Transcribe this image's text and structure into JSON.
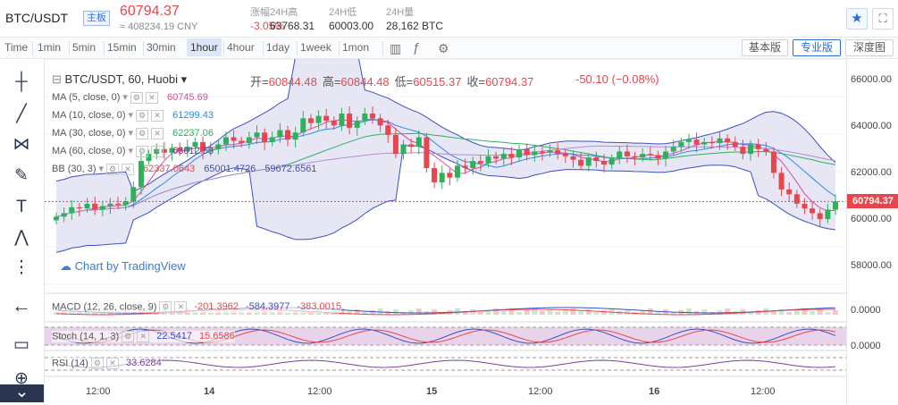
{
  "header": {
    "pair": "BTC/USDT",
    "board": "主板",
    "price": "60794.37",
    "cny": "≈ 408234.19 CNY",
    "stats": [
      {
        "label": "涨幅",
        "value": "-3.05%",
        "color": "#e8464d"
      },
      {
        "label": "24H高",
        "value": "63768.31",
        "color": "#333333"
      },
      {
        "label": "24H低",
        "value": "60003.00",
        "color": "#333333"
      },
      {
        "label": "24H量",
        "value": "28,162 BTC",
        "color": "#333333"
      }
    ],
    "star_icon": "★",
    "fullscreen_icon": "⛶"
  },
  "toolbar": {
    "time_label": "Time",
    "intervals": [
      "1min",
      "5min",
      "15min",
      "30min",
      "1hour",
      "4hour",
      "1day",
      "1week",
      "1mon"
    ],
    "active_interval": "1hour",
    "views": [
      "基本版",
      "专业版",
      "深度图"
    ],
    "active_view": "专业版"
  },
  "legend": {
    "title": "BTC/USDT, 60, Huobi",
    "ohlc": [
      {
        "k": "开=",
        "v": "60844.48"
      },
      {
        "k": "高=",
        "v": "60844.48"
      },
      {
        "k": "低=",
        "v": "60515.37"
      },
      {
        "k": "收=",
        "v": "60794.37"
      }
    ],
    "change": "-50.10 (−0.08%)",
    "indicators": [
      {
        "name": "MA (5, close, 0)",
        "values": [
          "60745.69"
        ],
        "colors": [
          "#e0489f"
        ]
      },
      {
        "name": "MA (10, close, 0)",
        "values": [
          "61299.43"
        ],
        "colors": [
          "#2f88e8"
        ]
      },
      {
        "name": "MA (30, close, 0)",
        "values": [
          "62237.06"
        ],
        "colors": [
          "#2fb05a"
        ]
      },
      {
        "name": "MA (60, close, 0)",
        "values": [
          "63012.53"
        ],
        "colors": [
          "#7a3f9d"
        ]
      },
      {
        "name": "BB (30, 3)",
        "values": [
          "62337.0643",
          "65001.4726",
          "59672.6561"
        ],
        "colors": [
          "#e8464d",
          "#3c4fc4",
          "#3c4fc4"
        ]
      }
    ]
  },
  "watermark": "Chart by TradingView",
  "price_scale": [
    "66000.00",
    "64000.00",
    "62000.00",
    "60000.00",
    "58000.00"
  ],
  "current_price_tag": "60794.37",
  "sub_panes": [
    {
      "name": "MACD (12, 26, close, 9)",
      "values": [
        "-201.3962",
        "-584.3977",
        "-383.0015"
      ],
      "colors": [
        "#e8464d",
        "#3c4fc4",
        "#e8464d"
      ],
      "scale": "0.0000"
    },
    {
      "name": "Stoch (14, 1, 3)",
      "values": [
        "22.5417",
        "15.6586"
      ],
      "colors": [
        "#3c4fc4",
        "#e8464d"
      ],
      "scale": "0.0000"
    },
    {
      "name": "RSI (14)",
      "values": [
        "33.6284"
      ],
      "colors": [
        "#7a3f9d"
      ],
      "scale": ""
    }
  ],
  "x_axis": [
    "12:00",
    "14",
    "12:00",
    "15",
    "12:00",
    "16",
    "12:00"
  ],
  "tool_icons": [
    "crosshair-icon",
    "trend-line-icon",
    "fib-icon",
    "brush-icon",
    "text-icon",
    "pattern-icon",
    "measure-icon",
    "heart-icon",
    "back-arrow-icon",
    "ruler-icon",
    "zoom-icon",
    "chevron-down-icon"
  ],
  "chart_data": {
    "type": "candlestick",
    "title": "BTC/USDT, 60, Huobi",
    "ylim": [
      57000,
      66800
    ],
    "closes": [
      60150,
      60300,
      60550,
      60500,
      60700,
      60450,
      60600,
      60700,
      60650,
      60800,
      61400,
      62500,
      62800,
      63000,
      62850,
      63050,
      62900,
      63100,
      63300,
      62900,
      63000,
      63200,
      63500,
      63350,
      63250,
      63500,
      63700,
      63300,
      63500,
      63800,
      63400,
      63700,
      64300,
      64100,
      64400,
      64200,
      64000,
      64500,
      63900,
      64200,
      64500,
      64300,
      64000,
      63600,
      62800,
      63200,
      63100,
      63500,
      62200,
      61600,
      62000,
      61800,
      62300,
      62200,
      62500,
      62400,
      62700,
      62600,
      62800,
      62650,
      63000,
      62750,
      62900,
      62850,
      62950,
      62800,
      62700,
      62550,
      62300,
      62650,
      62500,
      62350,
      62600,
      62900,
      62700,
      62650,
      62800,
      62750,
      62600,
      62900,
      63100,
      63300,
      63400,
      63200,
      63300,
      63250,
      63450,
      63300,
      63100,
      62800,
      63200,
      63000,
      62900,
      62000,
      61300,
      61100,
      60700,
      60500,
      60300,
      60050,
      60450,
      60794
    ]
  }
}
